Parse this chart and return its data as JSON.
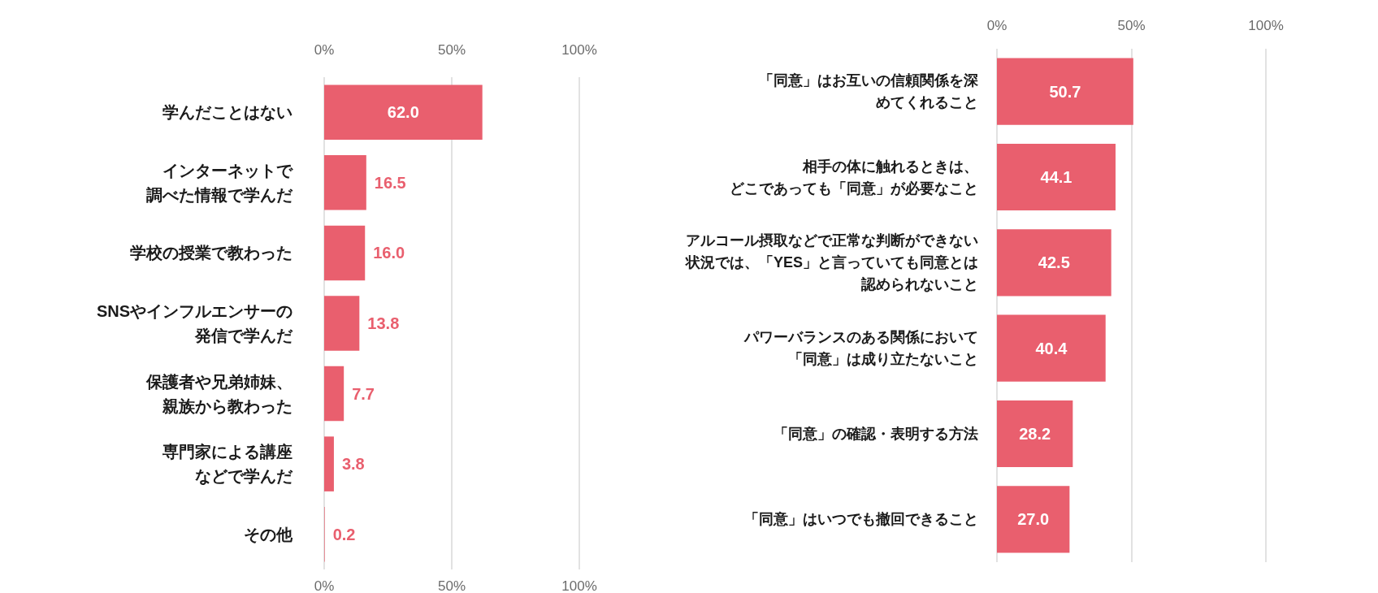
{
  "chart_data": [
    {
      "type": "bar",
      "orientation": "horizontal",
      "categories": [
        "学んだことはない",
        "インターネットで調べた情報で学んだ",
        "学校の授業で教わった",
        "SNSやインフルエンサーの発信で学んだ",
        "保護者や兄弟姉妹、親族から教わった",
        "専門家による講座などで学んだ",
        "その他"
      ],
      "values": [
        62.0,
        16.5,
        16.0,
        13.8,
        7.7,
        3.8,
        0.2
      ],
      "value_labels": [
        "62.0",
        "16.5",
        "16.0",
        "13.8",
        "7.7",
        "3.8",
        "0.2"
      ],
      "color": "#e95f6e",
      "xlim": [
        0,
        100
      ],
      "xticks": [
        {
          "value": 0,
          "label": "0%"
        },
        {
          "value": 50,
          "label": "50%"
        },
        {
          "value": 100,
          "label": "100%"
        }
      ],
      "x2lim": [
        0,
        100
      ],
      "x2ticks": [
        {
          "value": 0,
          "label": "0%"
        },
        {
          "value": 50,
          "label": "50%"
        },
        {
          "value": 100,
          "label": "100%"
        }
      ],
      "grid": "x"
    },
    {
      "type": "bar",
      "orientation": "horizontal",
      "categories": [
        "「同意」はお互いの信頼関係を深めてくれること",
        "相手の体に触れるときは、どこであっても「同意」が必要なこと",
        "アルコール摂取などで正常な判断ができない状況では、「YES」と言っていても同意とは認められないこと",
        "パワーバランスのある関係において「同意」は成り立たないこと",
        "「同意」の確認・表明する方法",
        "「同意」はいつでも撤回できること"
      ],
      "values": [
        50.7,
        44.1,
        42.5,
        40.4,
        28.2,
        27.0
      ],
      "value_labels": [
        "50.7",
        "44.1",
        "42.5",
        "40.4",
        "28.2",
        "27.0"
      ],
      "color": "#e95f6e",
      "xlim": [
        0,
        100
      ],
      "xticks": [
        {
          "value": 0,
          "label": "0%"
        },
        {
          "value": 50,
          "label": "50%"
        },
        {
          "value": 100,
          "label": "100%"
        }
      ],
      "grid": "x"
    }
  ]
}
